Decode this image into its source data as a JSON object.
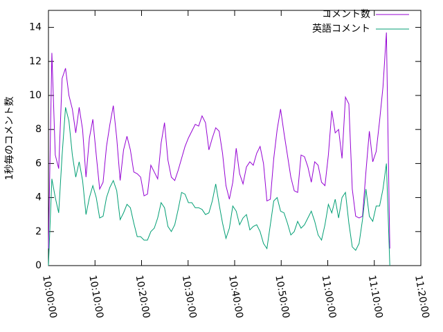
{
  "chart_data": {
    "type": "line",
    "ylabel": "1秒毎のコメント数",
    "x": [
      36000,
      36044,
      36088,
      36132,
      36176,
      36220,
      36264,
      36308,
      36352,
      36396,
      36440,
      36484,
      36528,
      36572,
      36616,
      36660,
      36704,
      36748,
      36792,
      36836,
      36880,
      36924,
      36968,
      37012,
      37056,
      37100,
      37144,
      37188,
      37232,
      37276,
      37320,
      37364,
      37408,
      37452,
      37496,
      37540,
      37584,
      37628,
      37672,
      37716,
      37760,
      37804,
      37848,
      37892,
      37936,
      37980,
      38024,
      38068,
      38112,
      38156,
      38200,
      38244,
      38288,
      38332,
      38376,
      38420,
      38464,
      38508,
      38552,
      38596,
      38640,
      38684,
      38728,
      38772,
      38816,
      38860,
      38904,
      38948,
      38992,
      39036,
      39080,
      39124,
      39168,
      39212,
      39256,
      39300,
      39344,
      39388,
      39432,
      39476,
      39520,
      39564,
      39608,
      39652,
      39696,
      39740,
      39784,
      39828,
      39872,
      39916,
      39960,
      40004,
      40048,
      40092,
      40136,
      40180,
      40224,
      40268,
      40312,
      40356,
      40400
    ],
    "series": [
      {
        "name": "コメント数",
        "color": "#9400d3",
        "values": [
          1,
          12.5,
          6.5,
          5.7,
          11,
          11.6,
          10,
          9.2,
          7.8,
          9.3,
          8,
          5.2,
          7.5,
          8.6,
          6.5,
          4.5,
          4.9,
          7,
          8.3,
          9.4,
          7.5,
          5,
          6.8,
          7.6,
          6.8,
          5.5,
          5.4,
          5.2,
          4.1,
          4.2,
          5.9,
          5.5,
          5.1,
          7.2,
          8.4,
          6.2,
          5.2,
          5,
          5.6,
          6.3,
          7,
          7.5,
          7.9,
          8.3,
          8.2,
          8.8,
          8.4,
          6.8,
          7.5,
          8.1,
          7.9,
          6.6,
          4.7,
          3.9,
          4.9,
          6.9,
          5.4,
          4.8,
          5.8,
          6.1,
          5.9,
          6.6,
          7,
          6,
          3.8,
          3.9,
          6.3,
          8,
          9.2,
          7.8,
          6.5,
          5.2,
          4.4,
          4.3,
          6.5,
          6.4,
          5.8,
          4.9,
          6.1,
          5.9,
          4.9,
          4.7,
          6.5,
          9.1,
          7.8,
          8,
          6.3,
          9.9,
          9.5,
          4.5,
          2.9,
          2.8,
          2.9,
          5.5,
          7.9,
          6.1,
          6.7,
          8.5,
          10.5,
          13.7,
          1
        ]
      },
      {
        "name": "英語コメント",
        "color": "#009e73",
        "values": [
          0,
          5.1,
          4,
          3.1,
          6.5,
          9.3,
          8.5,
          6.5,
          5.2,
          6.1,
          5,
          3,
          4,
          4.7,
          4,
          2.8,
          2.9,
          4,
          4.6,
          5,
          4.4,
          2.7,
          3.1,
          3.6,
          3.4,
          2.5,
          1.7,
          1.7,
          1.5,
          1.5,
          2,
          2.2,
          2.8,
          3.7,
          3.4,
          2.3,
          2,
          2.4,
          3.3,
          4.3,
          4.2,
          3.7,
          3.7,
          3.4,
          3.4,
          3.3,
          3,
          3.1,
          3.8,
          4.8,
          3.6,
          2.5,
          1.6,
          2.2,
          3.5,
          3.2,
          2.4,
          2.8,
          3,
          2.1,
          2.3,
          2.4,
          2,
          1.3,
          1,
          2.4,
          3.8,
          4,
          3.2,
          3.1,
          2.5,
          1.8,
          2,
          2.6,
          2.2,
          2.4,
          2.8,
          3.2,
          2.6,
          1.8,
          1.5,
          2.4,
          3.6,
          3.1,
          3.9,
          2.8,
          4,
          4.3,
          2.5,
          1.1,
          0.9,
          1.3,
          2.7,
          4.5,
          2.9,
          2.6,
          3.5,
          3.5,
          4.5,
          6,
          0
        ]
      }
    ],
    "xlim": [
      36000,
      40800
    ],
    "xticks": [
      {
        "value": 36000,
        "label": "10:00:00"
      },
      {
        "value": 36600,
        "label": "10:10:00"
      },
      {
        "value": 37200,
        "label": "10:20:00"
      },
      {
        "value": 37800,
        "label": "10:30:00"
      },
      {
        "value": 38400,
        "label": "10:40:00"
      },
      {
        "value": 39000,
        "label": "10:50:00"
      },
      {
        "value": 39600,
        "label": "11:00:00"
      },
      {
        "value": 40200,
        "label": "11:10:00"
      },
      {
        "value": 40800,
        "label": "11:20:00"
      }
    ],
    "ylim": [
      0,
      15
    ],
    "yticks": [
      0,
      2,
      4,
      6,
      8,
      10,
      12,
      14
    ],
    "legend": "top-right"
  }
}
